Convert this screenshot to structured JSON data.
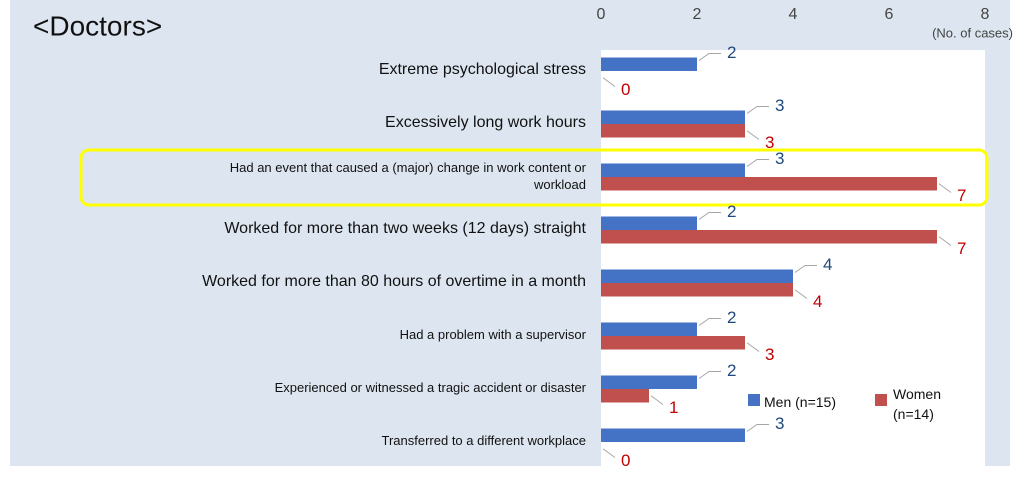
{
  "chart_data": {
    "type": "hbar",
    "title": "<Doctors>",
    "axis_label": "(No. of cases)",
    "categories": [
      "Extreme psychological stress",
      "Excessively long work hours",
      "Had an event that caused a (major) change in work content or workload",
      "Worked for more than two weeks (12 days) straight",
      "Worked for more than 80 hours of overtime in a month",
      "Had a problem with a supervisor",
      "Experienced or witnessed a tragic accident or disaster",
      "Transferred to a different workplace"
    ],
    "series": [
      {
        "name": "Men (n=15)",
        "color": "#4472c4",
        "label_color": "#1f497d",
        "values": [
          2,
          3,
          3,
          2,
          4,
          2,
          2,
          3
        ]
      },
      {
        "name": "Women (n=14)",
        "color": "#c0504d",
        "label_color": "#c00000",
        "values": [
          0,
          3,
          7,
          7,
          4,
          3,
          1,
          0
        ]
      }
    ],
    "xlim": [
      0,
      8
    ],
    "xticks": [
      0,
      2,
      4,
      6,
      8
    ],
    "grid": false
  }
}
